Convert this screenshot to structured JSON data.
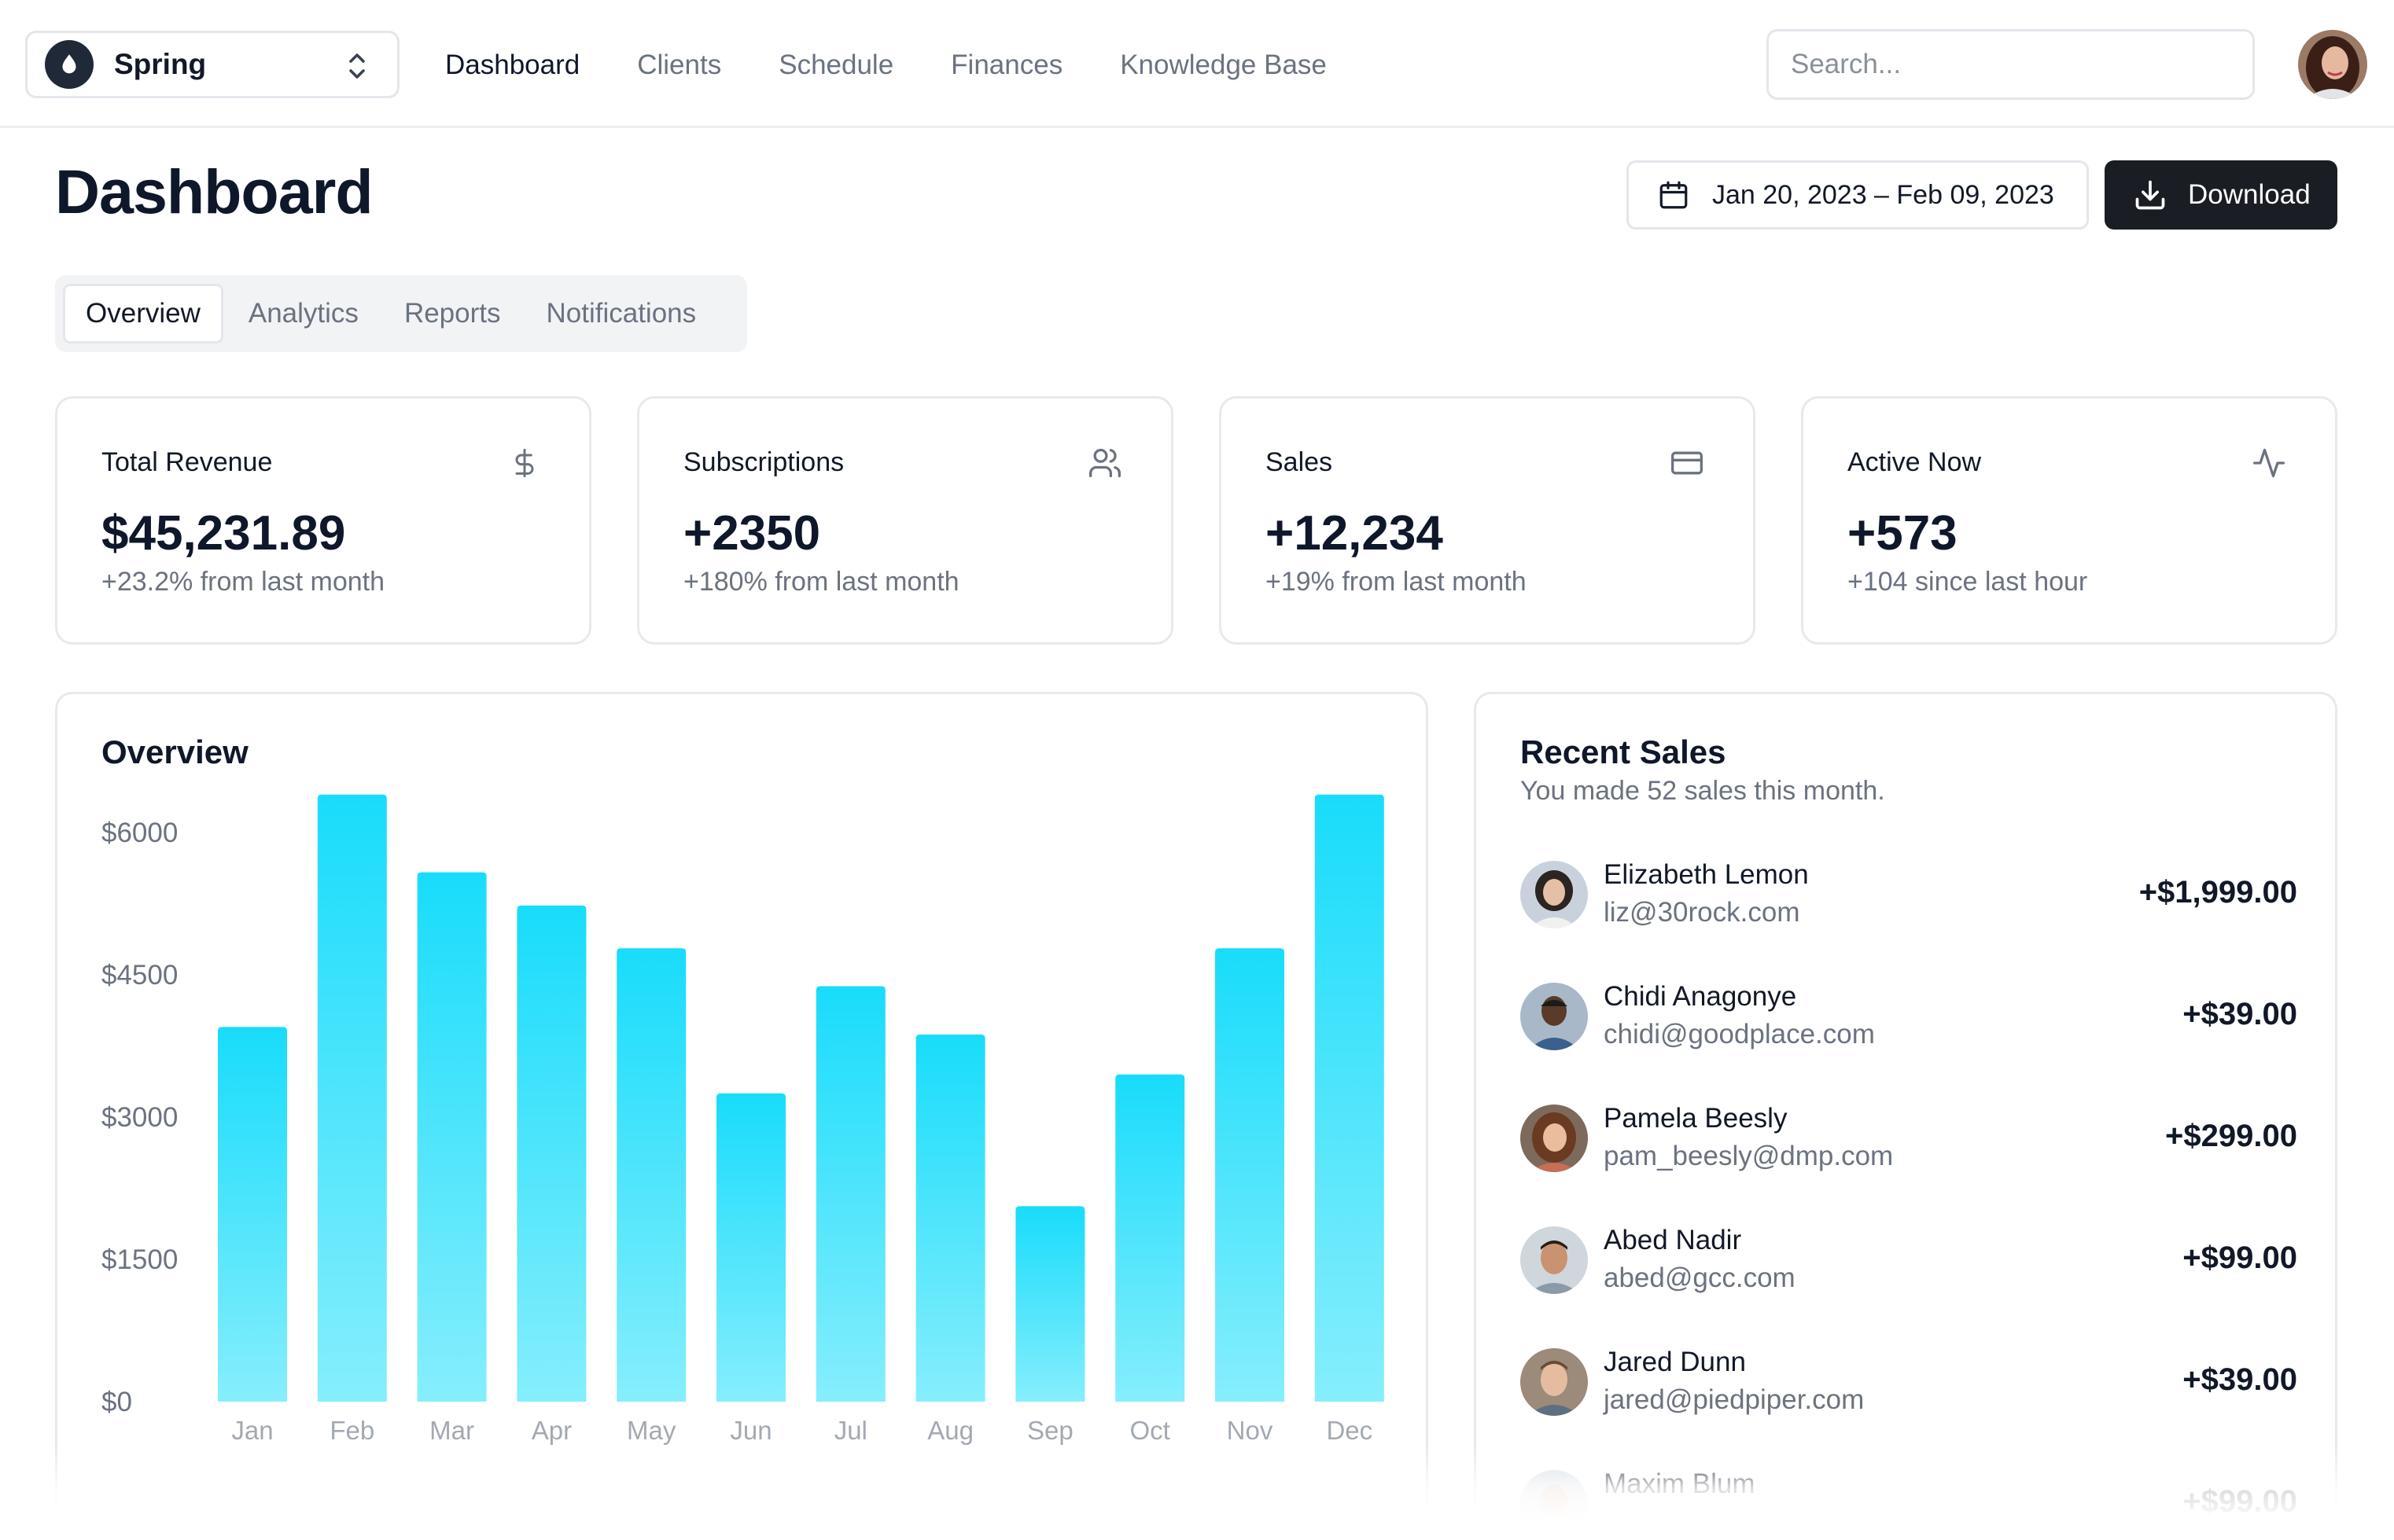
{
  "team": {
    "name": "Spring"
  },
  "nav": {
    "links": [
      "Dashboard",
      "Clients",
      "Schedule",
      "Finances",
      "Knowledge Base"
    ],
    "active": "Dashboard"
  },
  "search": {
    "placeholder": "Search..."
  },
  "header": {
    "title": "Dashboard",
    "date_range": "Jan 20, 2023 – Feb 09, 2023",
    "download_label": "Download"
  },
  "tabs": {
    "items": [
      "Overview",
      "Analytics",
      "Reports",
      "Notifications"
    ],
    "active": "Overview"
  },
  "stats": [
    {
      "title": "Total Revenue",
      "value": "$45,231.89",
      "sub": "+23.2% from last month",
      "icon": "dollar-icon"
    },
    {
      "title": "Subscriptions",
      "value": "+2350",
      "sub": "+180% from last month",
      "icon": "users-icon"
    },
    {
      "title": "Sales",
      "value": "+12,234",
      "sub": "+19% from last month",
      "icon": "credit-card-icon"
    },
    {
      "title": "Active Now",
      "value": "+573",
      "sub": "+104 since last hour",
      "icon": "activity-icon"
    }
  ],
  "overview": {
    "title": "Overview"
  },
  "chart_data": {
    "type": "bar",
    "title": "Overview",
    "categories": [
      "Jan",
      "Feb",
      "Mar",
      "Apr",
      "May",
      "Jun",
      "Jul",
      "Aug",
      "Sep",
      "Oct",
      "Nov",
      "Dec"
    ],
    "values": [
      3950,
      6400,
      5580,
      5230,
      4780,
      3250,
      4380,
      3870,
      2060,
      3450,
      4780,
      6400
    ],
    "yticks": [
      "$6000",
      "$4500",
      "$3000",
      "$1500",
      "$0"
    ],
    "ytick_values": [
      6000,
      4500,
      3000,
      1500,
      0
    ],
    "ylim": [
      0,
      6400
    ],
    "bar_color_top": "#18dcfb",
    "bar_color_bottom": "#86eefd",
    "grid": false
  },
  "recent_sales": {
    "title": "Recent Sales",
    "subtitle": "You made 52 sales this month.",
    "items": [
      {
        "name": "Elizabeth Lemon",
        "email": "liz@30rock.com",
        "amount": "+$1,999.00"
      },
      {
        "name": "Chidi Anagonye",
        "email": "chidi@goodplace.com",
        "amount": "+$39.00"
      },
      {
        "name": "Pamela Beesly",
        "email": "pam_beesly@dmp.com",
        "amount": "+$299.00"
      },
      {
        "name": "Abed Nadir",
        "email": "abed@gcc.com",
        "amount": "+$99.00"
      },
      {
        "name": "Jared Dunn",
        "email": "jared@piedpiper.com",
        "amount": "+$39.00"
      },
      {
        "name": "Maxim Blum",
        "email": "",
        "amount": "+$99.00"
      }
    ]
  },
  "colors": {
    "accent": "#18dcfb",
    "primary_dark": "#1a1d23",
    "muted_text": "#6b7280",
    "border": "#e7e9ee"
  }
}
